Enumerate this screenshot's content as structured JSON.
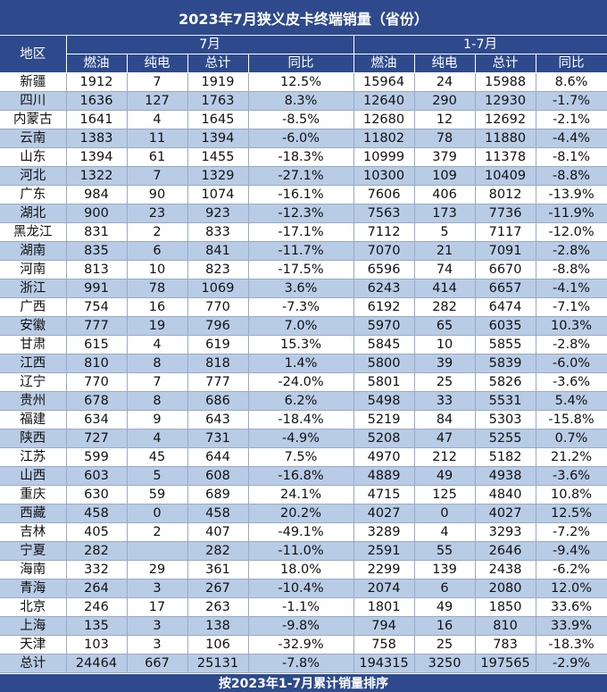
{
  "title": "2023年7月狭义皮卡终端销量（省份）",
  "header": {
    "region": "地区",
    "group_month": "7月",
    "group_ytd": "1-7月",
    "cols": [
      "燃油",
      "纯电",
      "总计",
      "同比",
      "燃油",
      "纯电",
      "总计",
      "同比"
    ]
  },
  "rows": [
    {
      "region": "新疆",
      "m_fuel": "1912",
      "m_ev": "7",
      "m_total": "1919",
      "m_yoy": "12.5%",
      "y_fuel": "15964",
      "y_ev": "24",
      "y_total": "15988",
      "y_yoy": "8.6%"
    },
    {
      "region": "四川",
      "m_fuel": "1636",
      "m_ev": "127",
      "m_total": "1763",
      "m_yoy": "8.3%",
      "y_fuel": "12640",
      "y_ev": "290",
      "y_total": "12930",
      "y_yoy": "-1.7%"
    },
    {
      "region": "内蒙古",
      "m_fuel": "1641",
      "m_ev": "4",
      "m_total": "1645",
      "m_yoy": "-8.5%",
      "y_fuel": "12680",
      "y_ev": "12",
      "y_total": "12692",
      "y_yoy": "-2.1%"
    },
    {
      "region": "云南",
      "m_fuel": "1383",
      "m_ev": "11",
      "m_total": "1394",
      "m_yoy": "-6.0%",
      "y_fuel": "11802",
      "y_ev": "78",
      "y_total": "11880",
      "y_yoy": "-4.4%"
    },
    {
      "region": "山东",
      "m_fuel": "1394",
      "m_ev": "61",
      "m_total": "1455",
      "m_yoy": "-18.3%",
      "y_fuel": "10999",
      "y_ev": "379",
      "y_total": "11378",
      "y_yoy": "-8.1%"
    },
    {
      "region": "河北",
      "m_fuel": "1322",
      "m_ev": "7",
      "m_total": "1329",
      "m_yoy": "-27.1%",
      "y_fuel": "10300",
      "y_ev": "109",
      "y_total": "10409",
      "y_yoy": "-8.8%"
    },
    {
      "region": "广东",
      "m_fuel": "984",
      "m_ev": "90",
      "m_total": "1074",
      "m_yoy": "-16.1%",
      "y_fuel": "7606",
      "y_ev": "406",
      "y_total": "8012",
      "y_yoy": "-13.9%"
    },
    {
      "region": "湖北",
      "m_fuel": "900",
      "m_ev": "23",
      "m_total": "923",
      "m_yoy": "-12.3%",
      "y_fuel": "7563",
      "y_ev": "173",
      "y_total": "7736",
      "y_yoy": "-11.9%"
    },
    {
      "region": "黑龙江",
      "m_fuel": "831",
      "m_ev": "2",
      "m_total": "833",
      "m_yoy": "-17.1%",
      "y_fuel": "7112",
      "y_ev": "5",
      "y_total": "7117",
      "y_yoy": "-12.0%"
    },
    {
      "region": "湖南",
      "m_fuel": "835",
      "m_ev": "6",
      "m_total": "841",
      "m_yoy": "-11.7%",
      "y_fuel": "7070",
      "y_ev": "21",
      "y_total": "7091",
      "y_yoy": "-2.8%"
    },
    {
      "region": "河南",
      "m_fuel": "813",
      "m_ev": "10",
      "m_total": "823",
      "m_yoy": "-17.5%",
      "y_fuel": "6596",
      "y_ev": "74",
      "y_total": "6670",
      "y_yoy": "-8.8%"
    },
    {
      "region": "浙江",
      "m_fuel": "991",
      "m_ev": "78",
      "m_total": "1069",
      "m_yoy": "3.6%",
      "y_fuel": "6243",
      "y_ev": "414",
      "y_total": "6657",
      "y_yoy": "-4.1%"
    },
    {
      "region": "广西",
      "m_fuel": "754",
      "m_ev": "16",
      "m_total": "770",
      "m_yoy": "-7.3%",
      "y_fuel": "6192",
      "y_ev": "282",
      "y_total": "6474",
      "y_yoy": "-7.1%"
    },
    {
      "region": "安徽",
      "m_fuel": "777",
      "m_ev": "19",
      "m_total": "796",
      "m_yoy": "7.0%",
      "y_fuel": "5970",
      "y_ev": "65",
      "y_total": "6035",
      "y_yoy": "10.3%"
    },
    {
      "region": "甘肃",
      "m_fuel": "615",
      "m_ev": "4",
      "m_total": "619",
      "m_yoy": "15.3%",
      "y_fuel": "5845",
      "y_ev": "10",
      "y_total": "5855",
      "y_yoy": "-2.8%"
    },
    {
      "region": "江西",
      "m_fuel": "810",
      "m_ev": "8",
      "m_total": "818",
      "m_yoy": "1.4%",
      "y_fuel": "5800",
      "y_ev": "39",
      "y_total": "5839",
      "y_yoy": "-6.0%"
    },
    {
      "region": "辽宁",
      "m_fuel": "770",
      "m_ev": "7",
      "m_total": "777",
      "m_yoy": "-24.0%",
      "y_fuel": "5801",
      "y_ev": "25",
      "y_total": "5826",
      "y_yoy": "-3.6%"
    },
    {
      "region": "贵州",
      "m_fuel": "678",
      "m_ev": "8",
      "m_total": "686",
      "m_yoy": "6.2%",
      "y_fuel": "5498",
      "y_ev": "33",
      "y_total": "5531",
      "y_yoy": "5.4%"
    },
    {
      "region": "福建",
      "m_fuel": "634",
      "m_ev": "9",
      "m_total": "643",
      "m_yoy": "-18.4%",
      "y_fuel": "5219",
      "y_ev": "84",
      "y_total": "5303",
      "y_yoy": "-15.8%"
    },
    {
      "region": "陕西",
      "m_fuel": "727",
      "m_ev": "4",
      "m_total": "731",
      "m_yoy": "-4.9%",
      "y_fuel": "5208",
      "y_ev": "47",
      "y_total": "5255",
      "y_yoy": "0.7%"
    },
    {
      "region": "江苏",
      "m_fuel": "599",
      "m_ev": "45",
      "m_total": "644",
      "m_yoy": "7.5%",
      "y_fuel": "4970",
      "y_ev": "212",
      "y_total": "5182",
      "y_yoy": "21.2%"
    },
    {
      "region": "山西",
      "m_fuel": "603",
      "m_ev": "5",
      "m_total": "608",
      "m_yoy": "-16.8%",
      "y_fuel": "4889",
      "y_ev": "49",
      "y_total": "4938",
      "y_yoy": "-3.6%"
    },
    {
      "region": "重庆",
      "m_fuel": "630",
      "m_ev": "59",
      "m_total": "689",
      "m_yoy": "24.1%",
      "y_fuel": "4715",
      "y_ev": "125",
      "y_total": "4840",
      "y_yoy": "10.8%"
    },
    {
      "region": "西藏",
      "m_fuel": "458",
      "m_ev": "0",
      "m_total": "458",
      "m_yoy": "20.2%",
      "y_fuel": "4027",
      "y_ev": "0",
      "y_total": "4027",
      "y_yoy": "12.5%"
    },
    {
      "region": "吉林",
      "m_fuel": "405",
      "m_ev": "2",
      "m_total": "407",
      "m_yoy": "-49.1%",
      "y_fuel": "3289",
      "y_ev": "4",
      "y_total": "3293",
      "y_yoy": "-7.2%"
    },
    {
      "region": "宁夏",
      "m_fuel": "282",
      "m_ev": "",
      "m_total": "282",
      "m_yoy": "-11.0%",
      "y_fuel": "2591",
      "y_ev": "55",
      "y_total": "2646",
      "y_yoy": "-9.4%"
    },
    {
      "region": "海南",
      "m_fuel": "332",
      "m_ev": "29",
      "m_total": "361",
      "m_yoy": "18.0%",
      "y_fuel": "2299",
      "y_ev": "139",
      "y_total": "2438",
      "y_yoy": "-6.2%"
    },
    {
      "region": "青海",
      "m_fuel": "264",
      "m_ev": "3",
      "m_total": "267",
      "m_yoy": "-10.4%",
      "y_fuel": "2074",
      "y_ev": "6",
      "y_total": "2080",
      "y_yoy": "12.0%"
    },
    {
      "region": "北京",
      "m_fuel": "246",
      "m_ev": "17",
      "m_total": "263",
      "m_yoy": "-1.1%",
      "y_fuel": "1801",
      "y_ev": "49",
      "y_total": "1850",
      "y_yoy": "33.6%"
    },
    {
      "region": "上海",
      "m_fuel": "135",
      "m_ev": "3",
      "m_total": "138",
      "m_yoy": "-9.8%",
      "y_fuel": "794",
      "y_ev": "16",
      "y_total": "810",
      "y_yoy": "33.9%"
    },
    {
      "region": "天津",
      "m_fuel": "103",
      "m_ev": "3",
      "m_total": "106",
      "m_yoy": "-32.9%",
      "y_fuel": "758",
      "y_ev": "25",
      "y_total": "783",
      "y_yoy": "-18.3%"
    },
    {
      "region": "总计",
      "m_fuel": "24464",
      "m_ev": "667",
      "m_total": "25131",
      "m_yoy": "-7.8%",
      "y_fuel": "194315",
      "y_ev": "3250",
      "y_total": "197565",
      "y_yoy": "-2.9%"
    }
  ],
  "footer": "按2023年1-7月累计销量排序",
  "colors": {
    "header_bg": "#2e4a8c",
    "stripe": "#b8cce6",
    "positive": "#1a9a2a",
    "negative": "#e0202a"
  }
}
